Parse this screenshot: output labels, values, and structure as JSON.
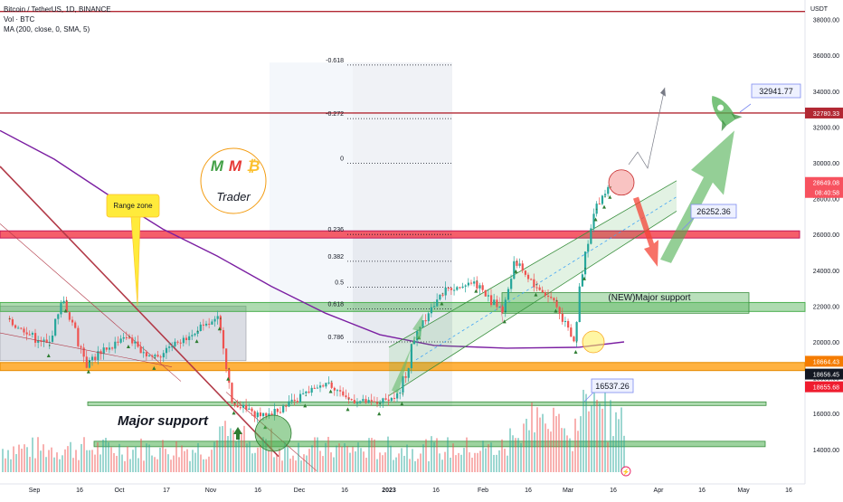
{
  "header": {
    "symbol_line": "Bitcoin / TetherUS, 1D, BINANCE",
    "volume_line": "Vol · BTC",
    "ma_line": "MA (200, close, 0, SMA, 5)"
  },
  "chart_data": {
    "type": "candlestick",
    "symbol": "Bitcoin / TetherUS",
    "interval": "1D",
    "exchange": "BINANCE",
    "currency": "USDT",
    "y_axis": {
      "unit": "USDT",
      "ticks": [
        "38000.00",
        "36000.00",
        "34000.00",
        "32000.00",
        "30000.00",
        "28000.00",
        "26000.00",
        "24000.00",
        "22000.00",
        "20000.00",
        "18000.00",
        "16000.00",
        "14000.00"
      ],
      "range": [
        13000,
        38800
      ]
    },
    "x_axis": {
      "ticks": [
        "Sep",
        "16",
        "Oct",
        "17",
        "Nov",
        "16",
        "Dec",
        "16",
        "2023",
        "16",
        "Feb",
        "16",
        "Mar",
        "16",
        "Apr",
        "16",
        "May",
        "16"
      ]
    },
    "price_labels": [
      {
        "text": "32780.33",
        "value": 32780.33,
        "color": "#b22833"
      },
      {
        "text": "28649.08",
        "value": 28649.08,
        "color": "#f7525f"
      },
      {
        "text": "08:40:58",
        "value": 28649.08,
        "color": "#f7525f"
      },
      {
        "text": "18664.43",
        "value": 18664.43,
        "color": "#f57c00"
      },
      {
        "text": "18656.45",
        "value": 18656.45,
        "color": "#131722"
      },
      {
        "text": "18655.68",
        "value": 18655.68,
        "color": "#ef1c2e"
      }
    ],
    "fibonacci": [
      {
        "label": "-0.618",
        "value": 35460
      },
      {
        "label": "-0.272",
        "value": 32470
      },
      {
        "label": "0",
        "value": 29970
      },
      {
        "label": "0.236",
        "value": 26000
      },
      {
        "label": "0.382",
        "value": 24500
      },
      {
        "label": "0.5",
        "value": 23050
      },
      {
        "label": "0.618",
        "value": 21850
      },
      {
        "label": "0.786",
        "value": 20000
      }
    ],
    "horizontal_levels": [
      {
        "name": "resistance-top",
        "value": 38450,
        "color": "#b22833"
      },
      {
        "name": "resistance-32780",
        "value": 32780.33,
        "color": "#b22833"
      },
      {
        "name": "red-zone",
        "low": 25800,
        "high": 26200,
        "color": "#f23645"
      },
      {
        "name": "new-major-support",
        "low": 21700,
        "high": 22200,
        "color": "#4caf50"
      },
      {
        "name": "orange-level",
        "low": 18400,
        "high": 18850,
        "color": "#ff9800"
      },
      {
        "name": "green-line",
        "value": 16550,
        "color": "#4caf50"
      },
      {
        "name": "major-support-lower",
        "value": 14300,
        "color": "#4caf50"
      }
    ],
    "annotations": [
      {
        "text": "Range zone"
      },
      {
        "text": "(NEW)Major support"
      },
      {
        "text": "Major support"
      },
      {
        "text": "32941.77"
      },
      {
        "text": "26252.36"
      },
      {
        "text": "16537.26"
      }
    ],
    "logo": {
      "letters": [
        "M",
        "M",
        "₿"
      ],
      "caption": "Trader"
    },
    "price_path": [
      {
        "date": "2022-08-23",
        "close": 21300
      },
      {
        "date": "2022-09-06",
        "close": 19800
      },
      {
        "date": "2022-09-12",
        "close": 22300
      },
      {
        "date": "2022-09-20",
        "close": 18900
      },
      {
        "date": "2022-10-04",
        "close": 20300
      },
      {
        "date": "2022-10-13",
        "close": 19100
      },
      {
        "date": "2022-10-28",
        "close": 20600
      },
      {
        "date": "2022-11-05",
        "close": 21300
      },
      {
        "date": "2022-11-08",
        "close": 18500
      },
      {
        "date": "2022-11-10",
        "close": 16600
      },
      {
        "date": "2022-11-21",
        "close": 15800
      },
      {
        "date": "2022-12-05",
        "close": 17000
      },
      {
        "date": "2022-12-14",
        "close": 17800
      },
      {
        "date": "2022-12-20",
        "close": 16800
      },
      {
        "date": "2022-12-31",
        "close": 16550
      },
      {
        "date": "2023-01-08",
        "close": 17100
      },
      {
        "date": "2023-01-14",
        "close": 20800
      },
      {
        "date": "2023-01-22",
        "close": 22700
      },
      {
        "date": "2023-02-03",
        "close": 23400
      },
      {
        "date": "2023-02-13",
        "close": 21700
      },
      {
        "date": "2023-02-17",
        "close": 24500
      },
      {
        "date": "2023-02-24",
        "close": 23200
      },
      {
        "date": "2023-03-03",
        "close": 22300
      },
      {
        "date": "2023-03-10",
        "close": 20000
      },
      {
        "date": "2023-03-13",
        "close": 24100
      },
      {
        "date": "2023-03-17",
        "close": 27400
      },
      {
        "date": "2023-03-20",
        "close": 28100
      },
      {
        "date": "2023-03-22",
        "close": 28649.08
      }
    ],
    "volume": {
      "unit": "BTC",
      "shown": "bars along the bottom"
    }
  }
}
